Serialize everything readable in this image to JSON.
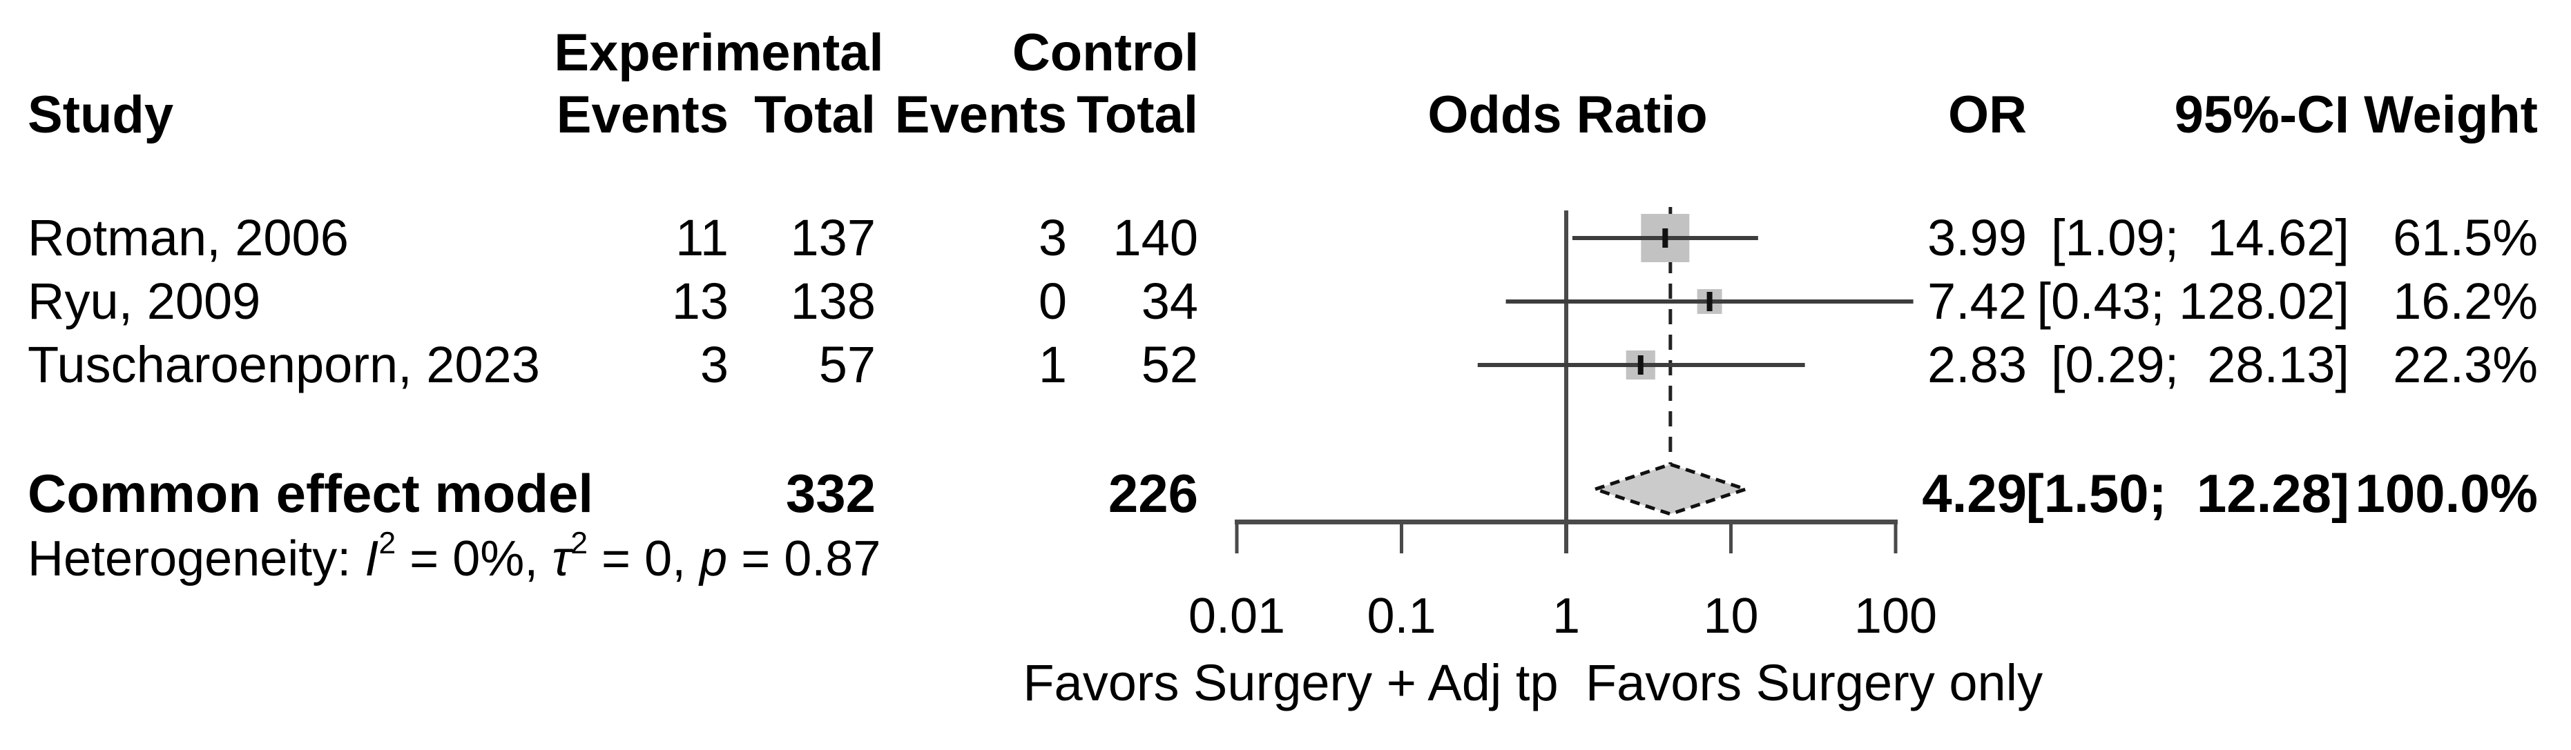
{
  "header": {
    "study": "Study",
    "experimental": "Experimental",
    "control": "Control",
    "events_exp": "Events",
    "total_exp": "Total",
    "events_ctrl": "Events",
    "total_ctrl": "Total",
    "odds_ratio": "Odds Ratio",
    "or": "OR",
    "ci": "95%-CI",
    "weight": "Weight"
  },
  "chart_data": {
    "type": "forest",
    "x_scale": "log10",
    "axis_range": [
      0.01,
      100
    ],
    "null_value": 1,
    "axis_ticks": [
      "0.01",
      "0.1",
      "1",
      "10",
      "100"
    ],
    "favors_left": "Favors Surgery + Adj tp",
    "favors_right": "Favors Surgery only",
    "studies": [
      {
        "name": "Rotman, 2006",
        "events_exp": "11",
        "total_exp": "137",
        "events_ctrl": "3",
        "total_ctrl": "140",
        "or": 3.99,
        "ci_low": 1.09,
        "ci_high": 14.62,
        "weight": 61.5,
        "or_text": "3.99",
        "ci_text": "[1.09;  14.62]",
        "weight_text": "61.5%"
      },
      {
        "name": "Ryu, 2009",
        "events_exp": "13",
        "total_exp": "138",
        "events_ctrl": "0",
        "total_ctrl": "34",
        "or": 7.42,
        "ci_low": 0.43,
        "ci_high": 128.02,
        "weight": 16.2,
        "or_text": "7.42",
        "ci_text": "[0.43; 128.02]",
        "weight_text": "16.2%"
      },
      {
        "name": "Tuscharoenporn, 2023",
        "events_exp": "3",
        "total_exp": "57",
        "events_ctrl": "1",
        "total_ctrl": "52",
        "or": 2.83,
        "ci_low": 0.29,
        "ci_high": 28.13,
        "weight": 22.3,
        "or_text": "2.83",
        "ci_text": "[0.29;  28.13]",
        "weight_text": "22.3%"
      }
    ],
    "summary": {
      "label": "Common effect model",
      "total_exp": "332",
      "total_ctrl": "226",
      "or": 4.29,
      "ci_low": 1.5,
      "ci_high": 12.28,
      "weight": 100.0,
      "or_text": "4.29",
      "ci_text": "[1.50;  12.28]",
      "weight_text": "100.0%"
    }
  },
  "heterogeneity": {
    "prefix": "Heterogeneity: ",
    "i_sym": "I",
    "i_sup": "2",
    "eq1": " = 0%, ",
    "tau_sym": "τ",
    "tau_sup": "2",
    "eq2": " = 0, ",
    "p_sym": "p",
    "eq3": " = 0.87"
  },
  "colors": {
    "text": "#000000",
    "ci_line": "#3d3d3d",
    "axis": "#4a4a4a",
    "square_fill": "#c2c2c2",
    "point_tick": "#111111",
    "diamond_fill": "#cbcbcb",
    "diamond_stroke": "#111111",
    "dashed_line": "#222222",
    "background": "#ffffff"
  }
}
